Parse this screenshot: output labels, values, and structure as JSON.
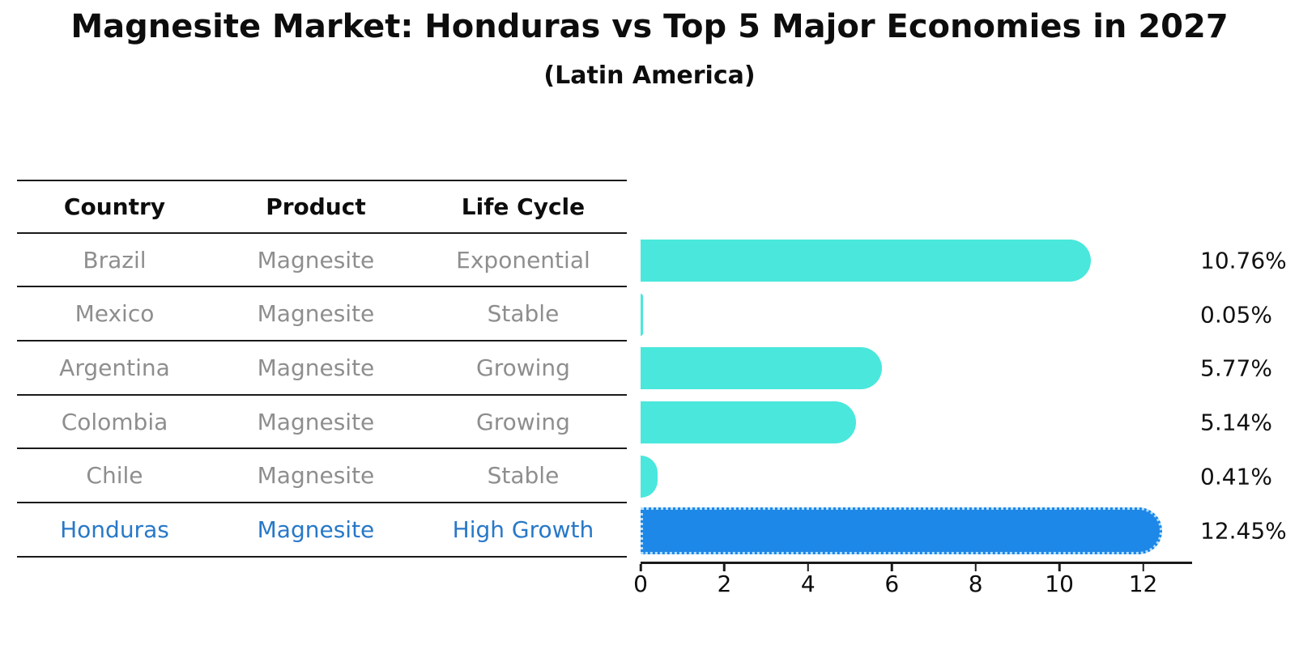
{
  "title": "Magnesite Market: Honduras vs Top 5 Major Economies in 2027",
  "subtitle": "(Latin America)",
  "table": {
    "headers": [
      "Country",
      "Product",
      "Life Cycle"
    ],
    "rows": [
      {
        "country": "Brazil",
        "product": "Magnesite",
        "life_cycle": "Exponential",
        "highlight": false
      },
      {
        "country": "Mexico",
        "product": "Magnesite",
        "life_cycle": "Stable",
        "highlight": false
      },
      {
        "country": "Argentina",
        "product": "Magnesite",
        "life_cycle": "Growing",
        "highlight": false
      },
      {
        "country": "Colombia",
        "product": "Magnesite",
        "life_cycle": "Growing",
        "highlight": false
      },
      {
        "country": "Chile",
        "product": "Magnesite",
        "life_cycle": "Stable",
        "highlight": false
      },
      {
        "country": "Honduras",
        "product": "Magnesite",
        "life_cycle": "High Growth",
        "highlight": true
      }
    ]
  },
  "chart_data": {
    "type": "bar",
    "orientation": "horizontal",
    "title": "Magnesite Market: Honduras vs Top 5 Major Economies in 2027",
    "subtitle": "(Latin America)",
    "categories": [
      "Brazil",
      "Mexico",
      "Argentina",
      "Colombia",
      "Chile",
      "Honduras"
    ],
    "values": [
      10.76,
      0.05,
      5.77,
      5.14,
      0.41,
      12.45
    ],
    "value_labels": [
      "10.76%",
      "0.05%",
      "5.77%",
      "5.14%",
      "0.41%",
      "12.45%"
    ],
    "x_ticks": [
      0,
      2,
      4,
      6,
      8,
      10,
      12
    ],
    "xlim": [
      0,
      13.13
    ],
    "xlabel": "",
    "ylabel": "",
    "grid": false,
    "legend": false,
    "highlighted_category": "Honduras"
  },
  "colors": {
    "bar_default": "#4AE7DC",
    "bar_highlight": "#1E88E8",
    "bar_highlight_border": "#B5E0FB",
    "highlight_text": "#2878C8",
    "table_text": "#8E8E8E",
    "header_text": "#0D0D0D",
    "line": "#1A1A1A",
    "value_text": "#111111"
  }
}
